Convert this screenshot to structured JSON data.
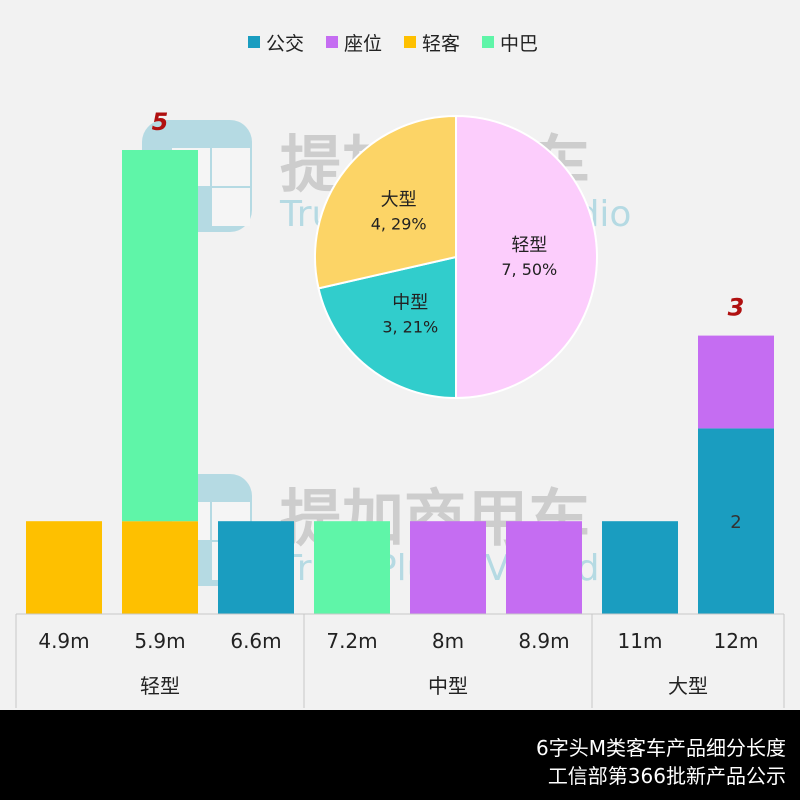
{
  "chart_data": [
    {
      "type": "bar",
      "stacked": true,
      "categories": [
        "4.9m",
        "5.9m",
        "6.6m",
        "7.2m",
        "8m",
        "8.9m",
        "11m",
        "12m"
      ],
      "groups": [
        {
          "label": "轻型",
          "categories": [
            "4.9m",
            "5.9m",
            "6.6m"
          ]
        },
        {
          "label": "中型",
          "categories": [
            "7.2m",
            "8m",
            "8.9m"
          ]
        },
        {
          "label": "大型",
          "categories": [
            "11m",
            "12m"
          ]
        }
      ],
      "series": [
        {
          "name": "公交",
          "color": "#1a9dc0",
          "values": [
            0,
            0,
            1,
            0,
            0,
            0,
            1,
            2
          ]
        },
        {
          "name": "座位",
          "color": "#c56df2",
          "values": [
            0,
            0,
            0,
            0,
            1,
            1,
            0,
            1
          ]
        },
        {
          "name": "轻客",
          "color": "#fec000",
          "values": [
            1,
            1,
            0,
            0,
            0,
            0,
            0,
            0
          ]
        },
        {
          "name": "中巴",
          "color": "#5ff5a8",
          "values": [
            0,
            4,
            0,
            1,
            0,
            0,
            0,
            0
          ]
        }
      ],
      "data_labels": [
        {
          "category": "12m",
          "series": "公交",
          "text": "2"
        }
      ],
      "total_labels": [
        {
          "category": "5.9m",
          "text": "5"
        },
        {
          "category": "12m",
          "text": "3"
        }
      ],
      "ylim": [
        0,
        5
      ],
      "legend_position": "top",
      "grid": false
    },
    {
      "type": "pie",
      "slices": [
        {
          "label": "轻型",
          "value": 7,
          "percent": "50%",
          "text": "7, 50%",
          "color": "#fccdfc"
        },
        {
          "label": "中型",
          "value": 3,
          "percent": "21%",
          "text": "3, 21%",
          "color": "#31cdcc"
        },
        {
          "label": "大型",
          "value": 4,
          "percent": "29%",
          "text": "4, 29%",
          "color": "#fcd466"
        }
      ]
    }
  ],
  "watermark": {
    "brand": "提加商用车",
    "sub": "TruckPlus CV studio"
  },
  "caption": {
    "line1": "6字头M类客车产品细分长度",
    "line2": "工信部第366批新产品公示"
  }
}
